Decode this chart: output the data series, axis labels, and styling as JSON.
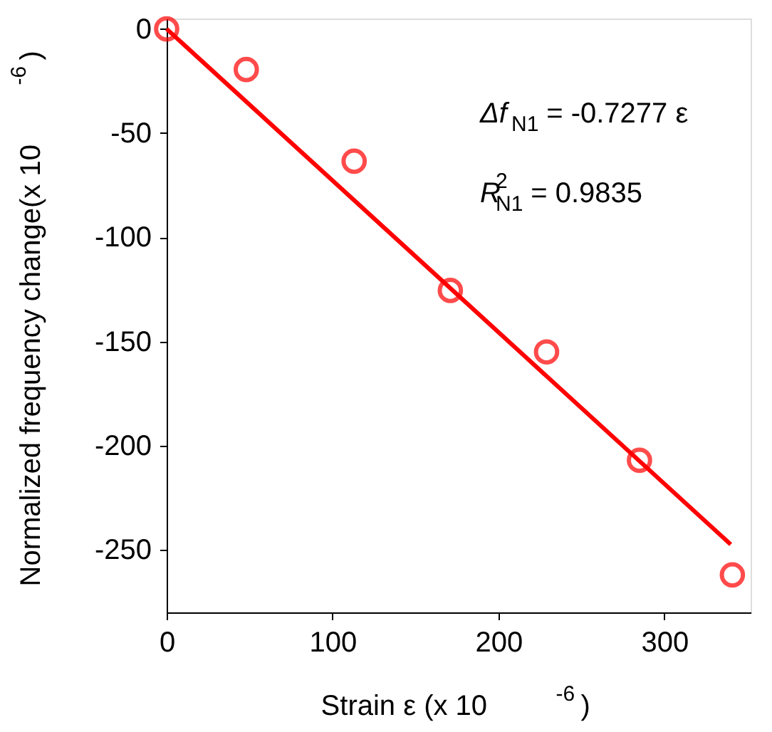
{
  "chart_data": {
    "type": "scatter",
    "xlabel": "Strain  ε (x 10$^{-6}$)",
    "ylabel": "Normalized frequency change(x 10$^{-6}$)",
    "series": [
      {
        "color": "#ff0000",
        "marker": "circle",
        "x": [
          0,
          48,
          113,
          171,
          229,
          285,
          341
        ],
        "values": [
          0,
          -19.5,
          -63.5,
          -125.5,
          -155,
          -207,
          -262
        ]
      },
      {
        "type": "line",
        "color": "#ff0000",
        "marker": "none",
        "x": [
          0,
          340
        ],
        "values": [
          0,
          -247.4
        ]
      }
    ],
    "annotations": [
      "Δf$_{N1}$ = -0.7277 ε",
      "R$^{2}$$_{N1}$ = 0.9835"
    ],
    "xlim": [
      0,
      352
    ],
    "xticks": [
      0,
      100,
      200,
      300
    ],
    "ylim": [
      -280,
      5
    ],
    "yticks": [
      0,
      -50,
      -100,
      -150,
      -200,
      -250
    ],
    "grid": false
  }
}
